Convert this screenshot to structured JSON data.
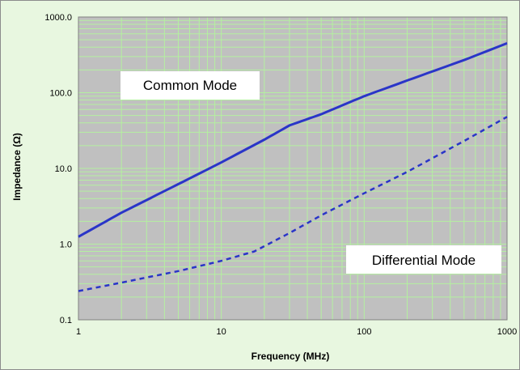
{
  "chart_data": {
    "type": "line",
    "title": "",
    "xlabel": "Frequency (MHz)",
    "ylabel": "Impedance (Ω)",
    "xscale": "log",
    "yscale": "log",
    "xlim": [
      1,
      1000
    ],
    "ylim": [
      0.1,
      1000
    ],
    "grid": true,
    "x_ticks": [
      "1",
      "10",
      "100",
      "1000"
    ],
    "y_ticks": [
      "0.1",
      "1.0",
      "10.0",
      "100.0",
      "1000.0"
    ],
    "colors": {
      "frame_background": "#e8f7e0",
      "plot_background": "#c0c0c0",
      "grid": "#b4f0a0",
      "series": "#2a35c8"
    },
    "series": [
      {
        "name": "Common Mode",
        "style": "solid",
        "x": [
          1,
          2,
          5,
          10,
          20,
          30,
          50,
          100,
          200,
          500,
          1000
        ],
        "y": [
          1.25,
          2.6,
          6.2,
          12.0,
          24.0,
          37.0,
          52.0,
          90.0,
          145.0,
          270.0,
          450.0
        ]
      },
      {
        "name": "Differential Mode",
        "style": "dashed",
        "x": [
          1,
          2,
          5,
          10,
          17,
          30,
          50,
          100,
          200,
          500,
          1000
        ],
        "y": [
          0.24,
          0.31,
          0.44,
          0.6,
          0.8,
          1.4,
          2.4,
          4.7,
          9.0,
          23.0,
          48.0
        ]
      }
    ],
    "annotations": [
      {
        "text": "Common Mode",
        "series": "Common Mode"
      },
      {
        "text": "Differential Mode",
        "series": "Differential Mode"
      }
    ]
  }
}
